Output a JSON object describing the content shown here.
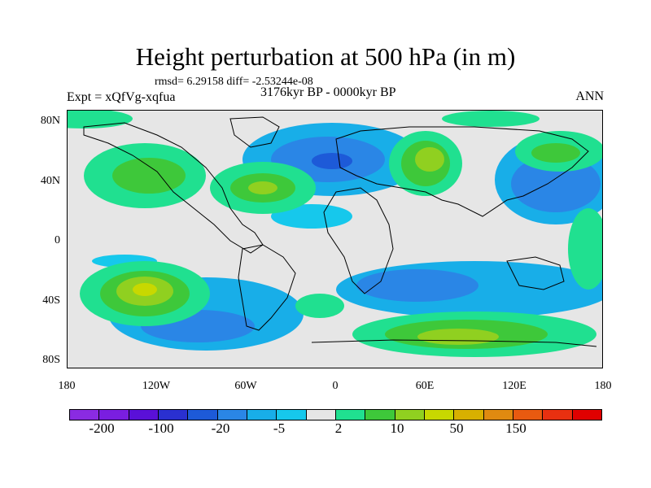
{
  "title": "Height perturbation at 500 hPa (in m)",
  "stats": "rmsd= 6.29158 diff= -2.53244e-08",
  "experiment": "Expt = xQfVg-xqfua",
  "period": "3176kyr BP - 0000kyr BP",
  "season": "ANN",
  "y_axis_labels": [
    "80N",
    "40N",
    "0",
    "40S",
    "80S"
  ],
  "x_axis_labels": [
    "180",
    "120W",
    "60W",
    "0",
    "60E",
    "120E",
    "180"
  ],
  "colorbar": {
    "labels": [
      "-200",
      "-100",
      "-20",
      "-5",
      "2",
      "10",
      "50",
      "150"
    ],
    "colors": [
      "#8a2be2",
      "#7a1ee0",
      "#5a10d8",
      "#2a30d0",
      "#1d5ad8",
      "#2a86e6",
      "#18aee8",
      "#16c8ec",
      "#e6e6e6",
      "#20e090",
      "#3ec83a",
      "#90d020",
      "#c8d800",
      "#d8b000",
      "#e08a10",
      "#e85a10",
      "#e83010",
      "#e00000"
    ]
  }
}
